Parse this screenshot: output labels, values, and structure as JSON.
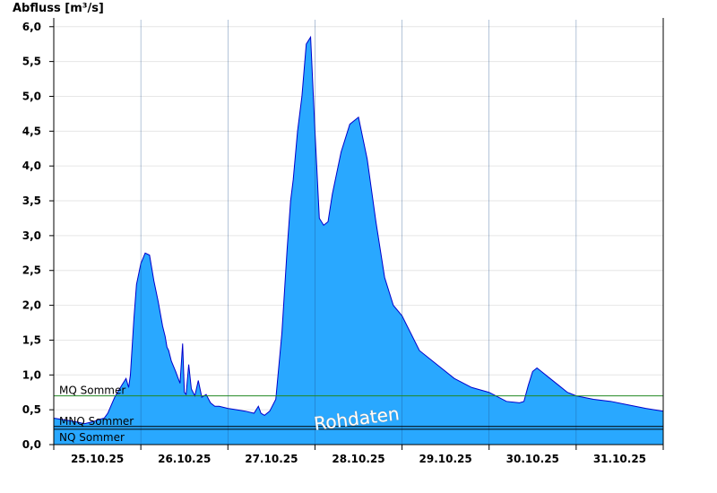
{
  "chart_data": {
    "type": "area",
    "title": "",
    "ylabel": "Abfluss [m³/s]",
    "xlabel": "",
    "ylim": [
      0,
      6.1
    ],
    "x_range": [
      0,
      7
    ],
    "yticks": [
      0,
      0.5,
      1.0,
      1.5,
      2.0,
      2.5,
      3.0,
      3.5,
      4.0,
      4.5,
      5.0,
      5.5,
      6.0
    ],
    "ytick_labels": [
      "0,0",
      "0,5",
      "1,0",
      "1,5",
      "2,0",
      "2,5",
      "3,0",
      "3,5",
      "4,0",
      "4,5",
      "5,0",
      "5,5",
      "6,0"
    ],
    "day_boundaries": [
      1,
      2,
      3,
      4,
      5,
      6
    ],
    "xtick_labels": [
      "25.10.25",
      "26.10.25",
      "27.10.25",
      "28.10.25",
      "29.10.25",
      "30.10.25",
      "31.10.25"
    ],
    "grid": "horizontal",
    "fill_color": "#29a8ff",
    "line_color": "#0000cc",
    "series": [
      {
        "x": [
          0,
          0.1,
          0.2,
          0.28,
          0.35,
          0.42,
          0.48,
          0.52,
          0.58,
          0.62,
          0.7,
          0.78,
          0.83,
          0.86,
          0.88,
          0.92,
          0.95,
          1.0,
          1.05,
          1.1,
          1.15,
          1.2,
          1.25,
          1.28,
          1.3,
          1.32,
          1.35,
          1.4,
          1.45,
          1.48,
          1.5,
          1.52,
          1.55,
          1.58,
          1.62,
          1.66,
          1.7,
          1.75,
          1.8,
          1.85,
          1.9,
          2.0,
          2.1,
          2.2,
          2.3,
          2.35,
          2.38,
          2.42,
          2.48,
          2.55,
          2.62,
          2.68,
          2.72,
          2.75,
          2.8,
          2.85,
          2.9,
          2.95,
          3.0,
          3.05,
          3.1,
          3.15,
          3.2,
          3.25,
          3.3,
          3.4,
          3.5,
          3.6,
          3.7,
          3.8,
          3.9,
          4.0,
          4.2,
          4.4,
          4.6,
          4.8,
          5.0,
          5.2,
          5.35,
          5.4,
          5.45,
          5.5,
          5.55,
          5.6,
          5.7,
          5.8,
          5.9,
          6.0,
          6.2,
          6.4,
          6.6,
          6.8,
          7.0
        ],
        "values": [
          0.38,
          0.36,
          0.34,
          0.32,
          0.3,
          0.32,
          0.34,
          0.36,
          0.38,
          0.45,
          0.68,
          0.85,
          0.95,
          0.82,
          1.0,
          1.8,
          2.3,
          2.6,
          2.75,
          2.72,
          2.35,
          2.05,
          1.7,
          1.55,
          1.4,
          1.35,
          1.2,
          1.05,
          0.88,
          1.45,
          0.75,
          0.72,
          1.15,
          0.8,
          0.7,
          0.92,
          0.68,
          0.72,
          0.6,
          0.55,
          0.55,
          0.52,
          0.5,
          0.48,
          0.45,
          0.55,
          0.45,
          0.42,
          0.48,
          0.65,
          1.6,
          2.8,
          3.5,
          3.8,
          4.5,
          5.0,
          5.75,
          5.85,
          4.5,
          3.25,
          3.15,
          3.2,
          3.6,
          3.9,
          4.2,
          4.6,
          4.7,
          4.1,
          3.2,
          2.4,
          2.0,
          1.85,
          1.35,
          1.15,
          0.95,
          0.82,
          0.75,
          0.62,
          0.6,
          0.62,
          0.85,
          1.05,
          1.1,
          1.05,
          0.95,
          0.85,
          0.75,
          0.7,
          0.65,
          0.62,
          0.57,
          0.52,
          0.48
        ]
      }
    ],
    "reference_lines": [
      {
        "label": "MQ Sommer",
        "value": 0.7,
        "color": "#228822"
      },
      {
        "label": "MNQ Sommer",
        "value": 0.26,
        "color": "#000000"
      },
      {
        "label": "NQ Sommer",
        "value": 0.22,
        "color": "#000000"
      }
    ],
    "watermark": "Rohdaten"
  }
}
